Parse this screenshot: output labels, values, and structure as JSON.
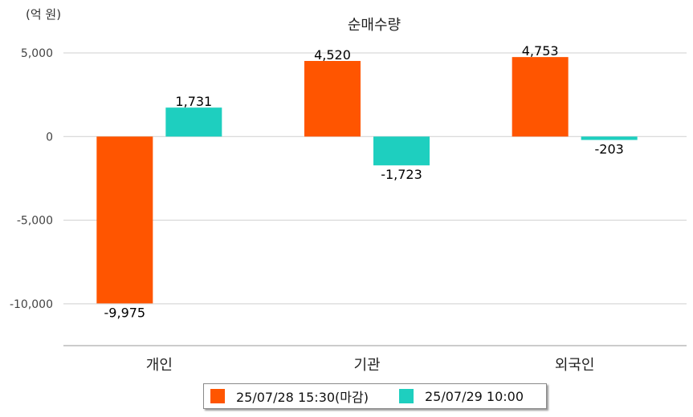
{
  "chart_data": {
    "type": "bar",
    "title": "순매수량",
    "unit": "(억 원)",
    "categories": [
      "개인",
      "기관",
      "외국인"
    ],
    "series": [
      {
        "name": "25/07/28 15:30(마감)",
        "color": "#ff5500",
        "values": [
          -9975,
          4520,
          4753
        ],
        "labels": [
          "-9,975",
          "4,520",
          "4,753"
        ]
      },
      {
        "name": "25/07/29 10:00",
        "color": "#1ecfbf",
        "values": [
          1731,
          -1723,
          -203
        ],
        "labels": [
          "1,731",
          "-1,723",
          "-203"
        ]
      }
    ],
    "yticks": [
      5000,
      0,
      -5000,
      -10000
    ],
    "ytick_labels": [
      "5,000",
      "0",
      "-5,000",
      "-10,000"
    ],
    "ylim": [
      -12500,
      5000
    ],
    "grid": true,
    "legend_position": "bottom"
  }
}
